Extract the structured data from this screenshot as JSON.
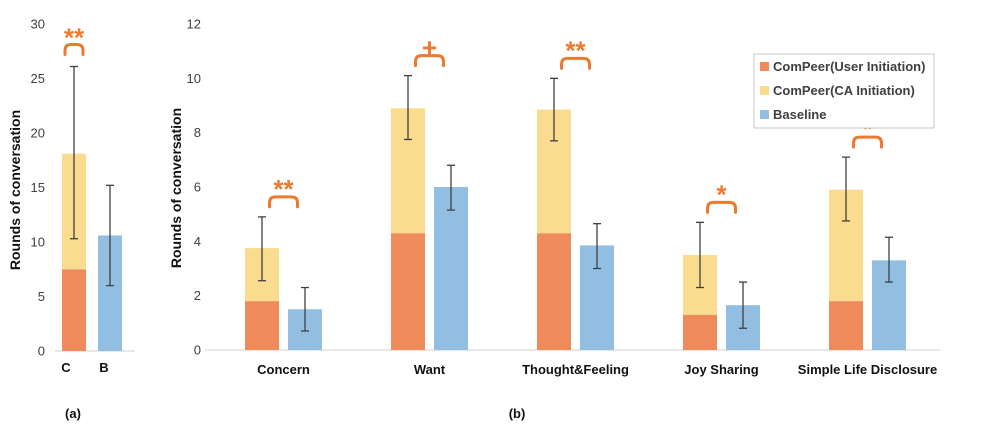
{
  "colors": {
    "user": "#ef8b5a",
    "ca": "#f9dc8e",
    "baseline": "#92bfe1",
    "sig": "#ec7a30",
    "err": "#404040",
    "axis": "#d0d0d0"
  },
  "legend": [
    {
      "label": "ComPeer(User Initiation)",
      "color": "#ef8b5a"
    },
    {
      "label": "ComPeer(CA Initiation)",
      "color": "#f9dc8e"
    },
    {
      "label": "Baseline",
      "color": "#92bfe1"
    }
  ],
  "chart_data": [
    {
      "type": "bar",
      "panel_label": "(a)",
      "ylabel": "Rounds of conversation",
      "ylim": [
        0,
        30
      ],
      "yticks": [
        0,
        5,
        10,
        15,
        20,
        25,
        30
      ],
      "categories": [
        "C",
        "B"
      ],
      "comp": [
        {
          "user": 7.5,
          "ca": 10.6,
          "err_low": 10.3,
          "err_high": 26.1,
          "sig": "**"
        }
      ],
      "baseline": [
        {
          "value": 10.6,
          "err_low": 6.0,
          "err_high": 15.2
        }
      ]
    },
    {
      "type": "bar",
      "panel_label": "(b)",
      "ylabel": "Rounds of conversation",
      "ylim": [
        0,
        12
      ],
      "yticks": [
        0,
        2,
        4,
        6,
        8,
        10,
        12
      ],
      "categories": [
        "Concern",
        "Want",
        "Thought&Feeling",
        "Joy Sharing",
        "Simple Life Disclosure"
      ],
      "comp_user": [
        1.8,
        4.3,
        4.3,
        1.3,
        1.8
      ],
      "comp_ca": [
        1.95,
        4.6,
        4.55,
        2.2,
        4.1
      ],
      "comp_err": [
        [
          2.55,
          4.9
        ],
        [
          7.75,
          10.1
        ],
        [
          7.7,
          10.0
        ],
        [
          2.3,
          4.7
        ],
        [
          4.75,
          7.1
        ]
      ],
      "baseline": [
        1.5,
        6.0,
        3.85,
        1.65,
        3.3
      ],
      "baseline_err": [
        [
          0.7,
          2.3
        ],
        [
          5.15,
          6.8
        ],
        [
          3.0,
          4.65
        ],
        [
          0.8,
          2.5
        ],
        [
          2.5,
          4.15
        ]
      ],
      "sig": [
        "**",
        "+",
        "**",
        "*",
        "*"
      ]
    }
  ]
}
